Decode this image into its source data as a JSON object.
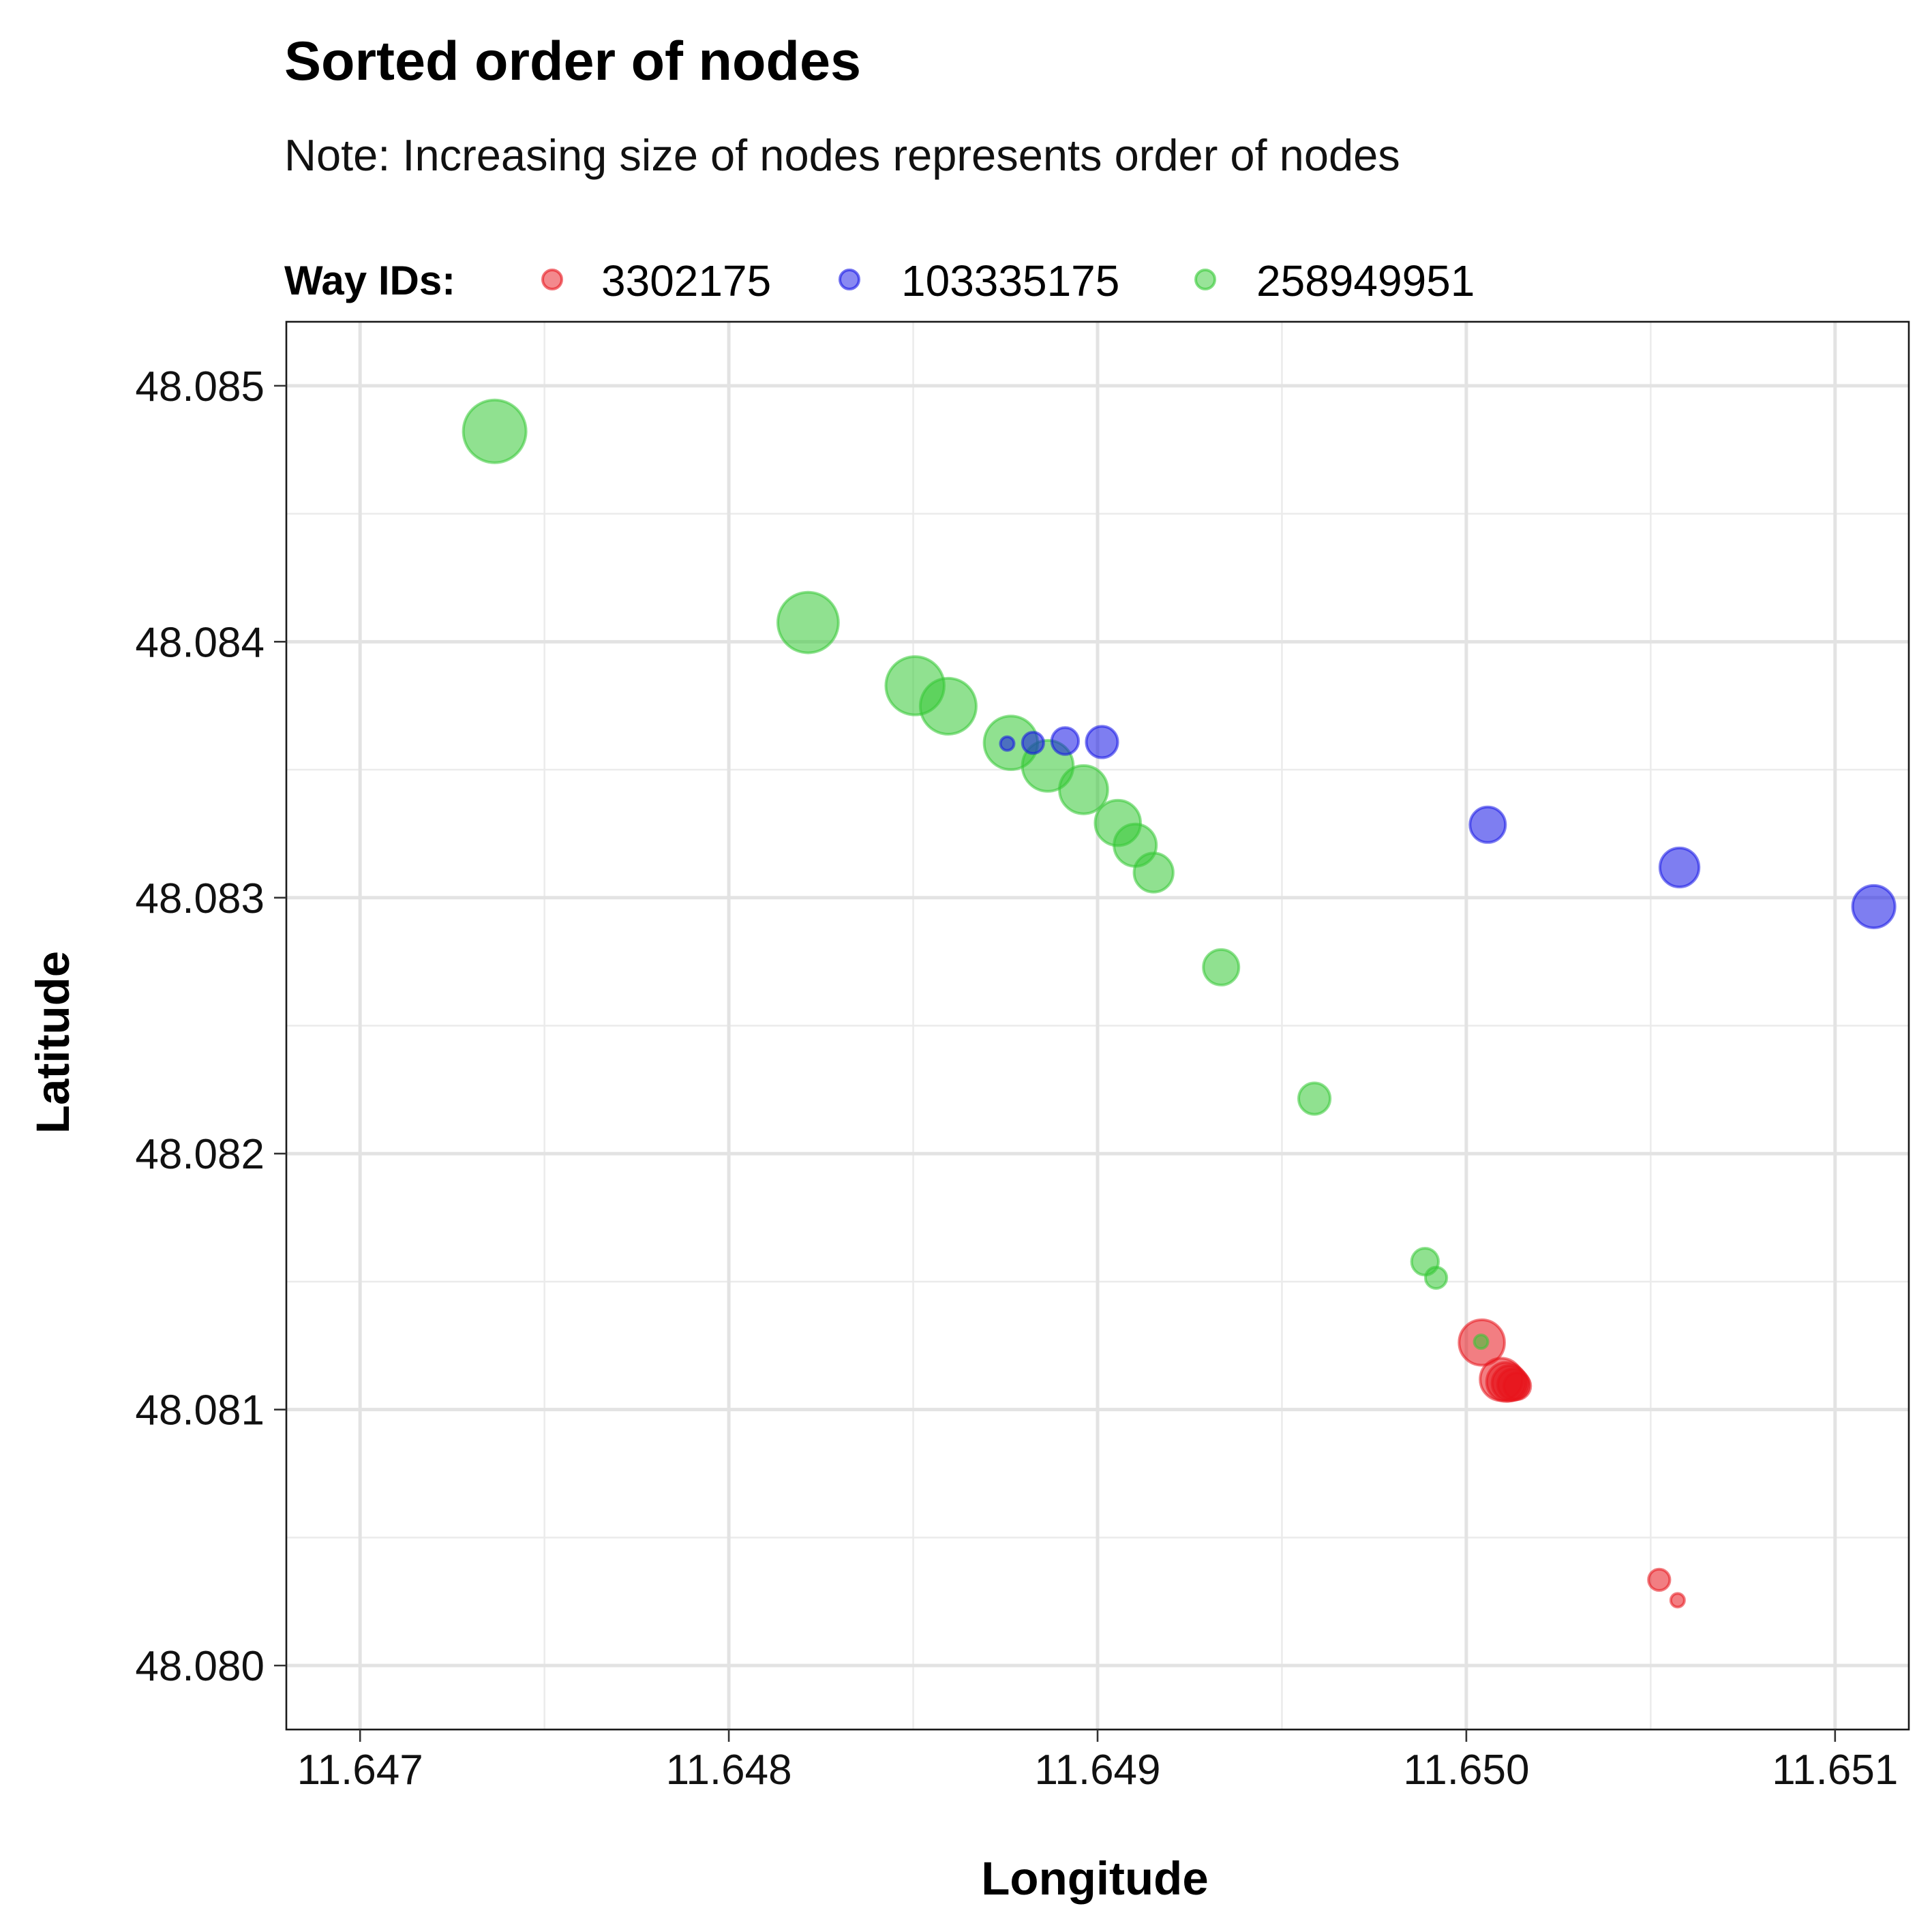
{
  "chart_data": {
    "type": "scatter",
    "title": "Sorted order of nodes",
    "subtitle": "Note: Increasing size of nodes represents order of nodes",
    "xlabel": "Longitude",
    "ylabel": "Latitude",
    "xlim": [
      11.6468,
      11.6512
    ],
    "ylim": [
      48.07975,
      48.08525
    ],
    "xticks": [
      "11.647",
      "11.648",
      "11.649",
      "11.650",
      "11.651"
    ],
    "yticks": [
      "48.080",
      "48.081",
      "48.082",
      "48.083",
      "48.084",
      "48.085"
    ],
    "grid": true,
    "legend": {
      "title": "Way IDs:",
      "position": "top-left"
    },
    "size_encoding": "order of nodes",
    "series": [
      {
        "name": "3302175",
        "color": "#e8141c",
        "points": [
          {
            "x": 11.650573,
            "y": 48.080255,
            "order": 1
          },
          {
            "x": 11.650523,
            "y": 48.080335,
            "order": 2
          },
          {
            "x": 11.650138,
            "y": 48.081092,
            "order": 3
          },
          {
            "x": 11.650128,
            "y": 48.081098,
            "order": 4
          },
          {
            "x": 11.650118,
            "y": 48.081103,
            "order": 5
          },
          {
            "x": 11.650108,
            "y": 48.081108,
            "order": 6
          },
          {
            "x": 11.650095,
            "y": 48.081118,
            "order": 7
          },
          {
            "x": 11.650042,
            "y": 48.081262,
            "order": 8
          }
        ]
      },
      {
        "name": "103335175",
        "color": "#1414e6",
        "points": [
          {
            "x": 11.648755,
            "y": 48.083602,
            "order": 1
          },
          {
            "x": 11.648825,
            "y": 48.083605,
            "order": 2
          },
          {
            "x": 11.648912,
            "y": 48.083612,
            "order": 3
          },
          {
            "x": 11.649012,
            "y": 48.083608,
            "order": 4
          },
          {
            "x": 11.650058,
            "y": 48.083285,
            "order": 5
          },
          {
            "x": 11.650578,
            "y": 48.083118,
            "order": 6
          },
          {
            "x": 11.651105,
            "y": 48.082965,
            "order": 7
          }
        ]
      },
      {
        "name": "258949951",
        "color": "#34c934",
        "points": [
          {
            "x": 11.65004,
            "y": 48.081265,
            "order": 1
          },
          {
            "x": 11.649918,
            "y": 48.081515,
            "order": 2
          },
          {
            "x": 11.649888,
            "y": 48.081578,
            "order": 3
          },
          {
            "x": 11.649588,
            "y": 48.082215,
            "order": 4
          },
          {
            "x": 11.649335,
            "y": 48.082728,
            "order": 5
          },
          {
            "x": 11.649152,
            "y": 48.083098,
            "order": 6
          },
          {
            "x": 11.649102,
            "y": 48.083205,
            "order": 7
          },
          {
            "x": 11.649055,
            "y": 48.083292,
            "order": 8
          },
          {
            "x": 11.648962,
            "y": 48.083422,
            "order": 9
          },
          {
            "x": 11.648865,
            "y": 48.083515,
            "order": 10
          },
          {
            "x": 11.648765,
            "y": 48.083605,
            "order": 11
          },
          {
            "x": 11.648595,
            "y": 48.083748,
            "order": 12
          },
          {
            "x": 11.648505,
            "y": 48.083828,
            "order": 13
          },
          {
            "x": 11.648215,
            "y": 48.084075,
            "order": 14
          },
          {
            "x": 11.647365,
            "y": 48.084822,
            "order": 15
          }
        ]
      }
    ]
  }
}
